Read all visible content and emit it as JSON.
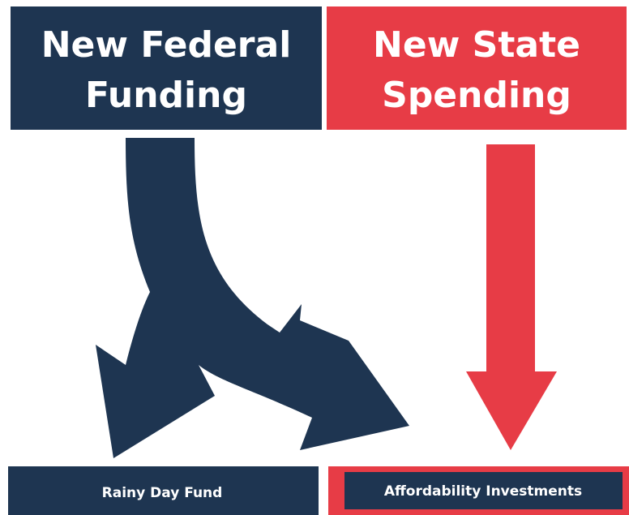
{
  "boxes": {
    "federal": {
      "label": [
        "New Federal",
        "Funding"
      ]
    },
    "state": {
      "label": [
        "New State",
        "Spending"
      ]
    },
    "rainy": {
      "label": "Rainy Day Fund"
    },
    "afford": {
      "label": "Affordability Investments"
    }
  }
}
